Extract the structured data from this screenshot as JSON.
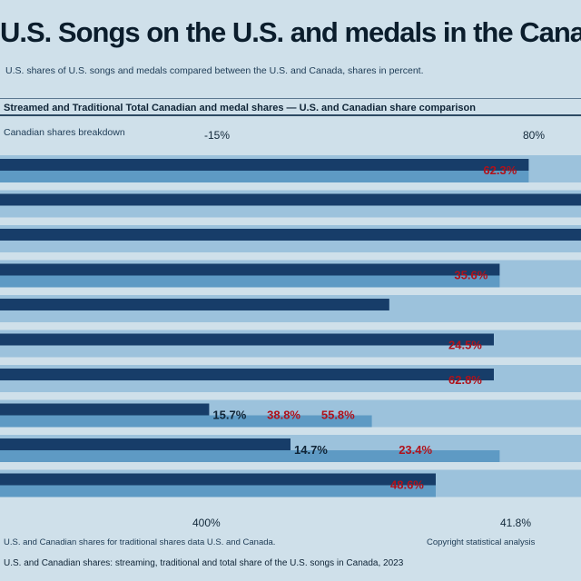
{
  "header": {
    "title": "U.S. Songs on the U.S. and medals in the Canada",
    "subtitle": "U.S. shares of U.S. songs and medals compared between the U.S. and Canada, shares in percent.",
    "column_header": "Streamed and Traditional Total Canadian and medal shares — U.S. and Canadian share comparison"
  },
  "section_label": "Canadian shares breakdown",
  "axis": {
    "top_left": "-15%",
    "top_right": "80%",
    "bottom_left": "400%",
    "bottom_right": "41.8%"
  },
  "footer": {
    "note": "U.S. and Canadian shares for traditional shares data U.S. and Canada.",
    "source": "Copyright statistical analysis",
    "line2": "U.S. and Canadian shares: streaming, traditional and total share of the U.S. songs in Canada, 2023"
  },
  "colors": {
    "dark_bar": "#173d69",
    "light_bar": "#5e9ac4",
    "pale_band": "#9cc2dc",
    "value_text": "#b0121b"
  },
  "chart_data": {
    "type": "bar",
    "orientation": "horizontal",
    "title": "U.S. Songs on the U.S. and medals in the Canada",
    "xlim": [
      0,
      100
    ],
    "series": [
      {
        "values": [
          91,
          100,
          100,
          86,
          67,
          85,
          85,
          36,
          50,
          75
        ]
      },
      {
        "values": [
          91,
          0,
          0,
          86,
          0,
          0,
          0,
          64,
          86,
          75
        ]
      }
    ],
    "labels": [
      [
        "62.3%"
      ],
      [],
      [],
      [
        "35.6%"
      ],
      [],
      [
        "24.5%"
      ],
      [
        "62.8%"
      ],
      [
        "15.7%",
        "38.8%",
        "55.8%"
      ],
      [
        "14.7%",
        "23.4%"
      ],
      [
        "48.6%"
      ]
    ]
  }
}
